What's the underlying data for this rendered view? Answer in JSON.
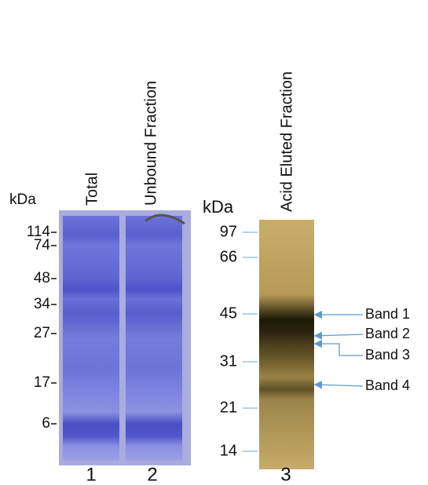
{
  "left_gel": {
    "unit_label": "kDa",
    "markers": [
      "114",
      "74",
      "48",
      "34",
      "27",
      "17",
      "6"
    ],
    "lanes": [
      {
        "label": "Total",
        "number": "1"
      },
      {
        "label": "Unbound Fraction",
        "number": "2"
      }
    ]
  },
  "right_gel": {
    "unit_label": "kDa",
    "markers": [
      "97",
      "66",
      "45",
      "31",
      "21",
      "14"
    ],
    "lanes": [
      {
        "label": "Acid Eluted Fraction",
        "number": "3"
      }
    ],
    "bands": [
      "Band 1",
      "Band 2",
      "Band 3",
      "Band 4"
    ]
  }
}
